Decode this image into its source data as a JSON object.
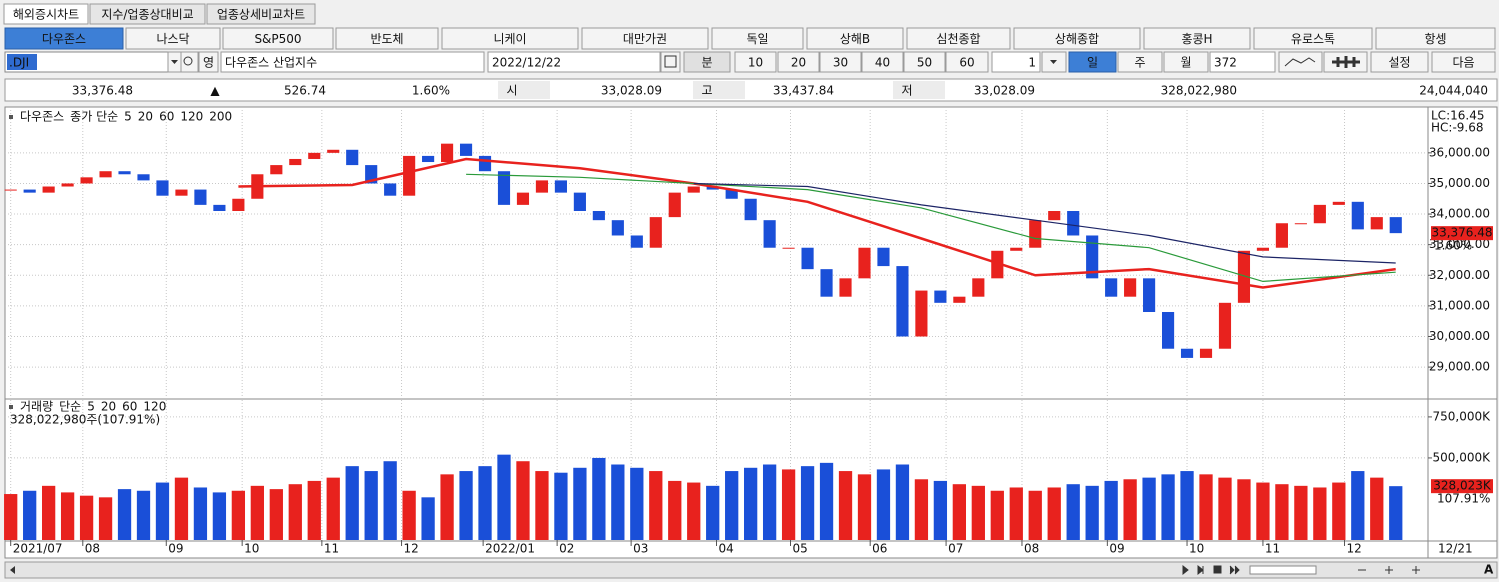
{
  "tabs": [
    "해외증시차트",
    "지수/업종상대비교",
    "업종상세비교차트"
  ],
  "markets": [
    "다우존스",
    "나스닥",
    "S&P500",
    "반도체",
    "니케이",
    "대만가권",
    "독일",
    "상해B",
    "심천종합",
    "상해종합",
    "홍콩H",
    "유로스톡",
    "항셍"
  ],
  "toolbar": {
    "symbol": ".DJI",
    "hanja": "영",
    "name": "다우존스 산업지수",
    "date": "2022/12/22",
    "minute": "분",
    "intervals": [
      "10",
      "20",
      "30",
      "40",
      "50",
      "60"
    ],
    "step": "1",
    "periods": [
      "일",
      "주",
      "월"
    ],
    "count": "372",
    "settings": "설정",
    "next": "다음"
  },
  "quote": {
    "last": "33,376.48",
    "arrow": "▲",
    "change": "526.74",
    "pct": "1.60%",
    "open_label": "시",
    "open": "33,028.09",
    "high_label": "고",
    "high": "33,437.84",
    "low_label": "저",
    "low": "33,028.09",
    "volume": "328,022,980",
    "amount": "24,044,040"
  },
  "chart_data": [
    {
      "type": "candlestick",
      "title": "다우존스",
      "legend_label": "종가 단순",
      "values": [
        34800,
        34700,
        34900,
        35000,
        35200,
        35400,
        35300,
        35100,
        34600,
        34800,
        34300,
        34100,
        34500,
        35300,
        35600,
        35800,
        36000,
        36100,
        35600,
        35000,
        34600,
        35900,
        35700,
        36300,
        35900,
        35400,
        34300,
        34700,
        35100,
        34700,
        34100,
        33800,
        33300,
        32900,
        33900,
        34700,
        34900,
        34800,
        34500,
        33800,
        32900,
        32900,
        32200,
        31300,
        31900,
        32900,
        32300,
        30000,
        31500,
        31100,
        31300,
        31900,
        32800,
        32900,
        33800,
        34100,
        33300,
        31900,
        31300,
        31900,
        30800,
        29600,
        29300,
        29600,
        31100,
        32800,
        32900,
        33700,
        33700,
        34300,
        34400,
        33500,
        33900,
        33376.48
      ],
      "up_color": "#e8221e",
      "down_color": "#1a4fd8",
      "series": [
        {
          "name": "5",
          "color": "#1a2fd0"
        },
        {
          "name": "20",
          "color": "#d21fd2"
        },
        {
          "name": "60",
          "color": "#e8221e",
          "x": [
            0,
            6,
            12,
            18,
            24,
            30,
            36,
            42,
            48,
            54,
            60,
            66,
            73
          ],
          "values": [
            null,
            null,
            34900,
            34950,
            35800,
            35500,
            35000,
            34400,
            33200,
            32000,
            32200,
            31600,
            32200
          ]
        },
        {
          "name": "120",
          "color": "#2a9a3a",
          "x": [
            0,
            6,
            12,
            18,
            24,
            30,
            36,
            42,
            48,
            54,
            60,
            66,
            73
          ],
          "values": [
            null,
            null,
            null,
            null,
            35300,
            35200,
            35000,
            34800,
            34200,
            33200,
            32900,
            31800,
            32100
          ]
        },
        {
          "name": "200",
          "color": "#1c2466",
          "x": [
            0,
            6,
            12,
            18,
            24,
            30,
            36,
            42,
            48,
            54,
            60,
            66,
            73
          ],
          "values": [
            null,
            null,
            null,
            null,
            null,
            null,
            35000,
            34900,
            34300,
            33800,
            33300,
            32600,
            32400
          ]
        }
      ],
      "xlim": [
        -0.3,
        74.7
      ],
      "xticks": [
        {
          "value": 0,
          "label": "2021/07"
        },
        {
          "value": 3.8,
          "label": "08"
        },
        {
          "value": 8.2,
          "label": "09"
        },
        {
          "value": 12.2,
          "label": "10"
        },
        {
          "value": 16.4,
          "label": "11"
        },
        {
          "value": 20.6,
          "label": "12"
        },
        {
          "value": 24.9,
          "label": "2022/01"
        },
        {
          "value": 28.8,
          "label": "02"
        },
        {
          "value": 32.7,
          "label": "03"
        },
        {
          "value": 37.2,
          "label": "04"
        },
        {
          "value": 41.1,
          "label": "05"
        },
        {
          "value": 45.3,
          "label": "06"
        },
        {
          "value": 49.3,
          "label": "07"
        },
        {
          "value": 53.3,
          "label": "08"
        },
        {
          "value": 57.8,
          "label": "09"
        },
        {
          "value": 62,
          "label": "10"
        },
        {
          "value": 66,
          "label": "11"
        },
        {
          "value": 70.3,
          "label": "12"
        }
      ],
      "ylim": [
        27990,
        37400
      ],
      "yticks": [
        {
          "value": 29000,
          "label": "29,000.00"
        },
        {
          "value": 30000,
          "label": "30,000.00"
        },
        {
          "value": 31000,
          "label": "31,000.00"
        },
        {
          "value": 32000,
          "label": "32,000.00"
        },
        {
          "value": 33000,
          "label": "33,000.00"
        },
        {
          "value": 34000,
          "label": "34,000.00"
        },
        {
          "value": 35000,
          "label": "35,000.00"
        },
        {
          "value": 36000,
          "label": "36,000.00"
        }
      ],
      "annotations": [
        "LC:16.45",
        "HC:-9.68"
      ],
      "last_label": "33,376.48",
      "last_pct": "1.60%",
      "cursor_date": "12/21",
      "grid": true
    },
    {
      "type": "bar",
      "title": "거래량",
      "legend_label": "단순",
      "subtitle": "328,022,980주(107.91%)",
      "series": [
        {
          "name": "5",
          "color": "#1a2fd0"
        },
        {
          "name": "20",
          "color": "#e8221e"
        },
        {
          "name": "60",
          "color": "#2a9a3a"
        },
        {
          "name": "120",
          "color": "#111111"
        }
      ],
      "values": [
        280000,
        300000,
        330000,
        290000,
        270000,
        260000,
        310000,
        300000,
        350000,
        380000,
        320000,
        290000,
        300000,
        330000,
        310000,
        340000,
        360000,
        380000,
        450000,
        420000,
        480000,
        300000,
        260000,
        400000,
        420000,
        450000,
        520000,
        480000,
        420000,
        410000,
        440000,
        500000,
        460000,
        440000,
        420000,
        360000,
        350000,
        330000,
        420000,
        440000,
        460000,
        430000,
        450000,
        470000,
        420000,
        400000,
        430000,
        460000,
        370000,
        360000,
        340000,
        330000,
        300000,
        320000,
        300000,
        320000,
        340000,
        330000,
        360000,
        370000,
        380000,
        400000,
        420000,
        400000,
        380000,
        370000,
        350000,
        340000,
        330000,
        320000,
        350000,
        420000,
        380000,
        328023
      ],
      "ylim": [
        0,
        853000
      ],
      "yticks": [
        {
          "value": 500000,
          "label": "500,000K"
        },
        {
          "value": 750000,
          "label": "750,000K"
        }
      ],
      "last_label": "328,023K",
      "last_pct": "107.91%",
      "grid": true
    }
  ]
}
